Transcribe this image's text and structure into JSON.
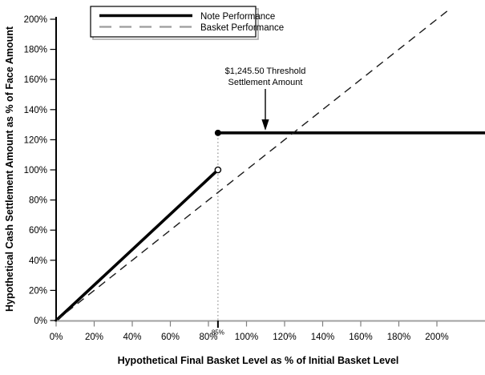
{
  "chart_data": {
    "type": "line",
    "title": "",
    "xlabel": "Hypothetical Final Basket Level as % of Initial Basket Level",
    "ylabel": "Hypothetical Cash Settlement Amount as % of Face Amount",
    "x_axis": {
      "tick_labels": [
        "0%",
        "20%",
        "40%",
        "60%",
        "80%",
        "100%",
        "120%",
        "140%",
        "160%",
        "180%",
        "200%"
      ],
      "tick_values": [
        0,
        20,
        40,
        60,
        80,
        100,
        120,
        140,
        160,
        180,
        200
      ],
      "special_tick": {
        "label": "85%",
        "value": 85
      },
      "range": [
        0,
        225
      ],
      "grid": false
    },
    "y_axis": {
      "tick_labels": [
        "0%",
        "20%",
        "40%",
        "60%",
        "80%",
        "100%",
        "120%",
        "140%",
        "160%",
        "180%",
        "200%"
      ],
      "tick_values": [
        0,
        20,
        40,
        60,
        80,
        100,
        120,
        140,
        160,
        180,
        200
      ],
      "range": [
        0,
        207
      ],
      "grid": false
    },
    "series": [
      {
        "name": "Note Performance",
        "style": "solid",
        "color": "#000000",
        "segments": [
          {
            "points": [
              [
                0,
                0
              ],
              [
                85,
                100
              ]
            ],
            "end_marker": "open-circle"
          },
          {
            "points": [
              [
                85,
                124.55
              ],
              [
                225,
                124.55
              ]
            ],
            "start_marker": "filled-circle"
          }
        ]
      },
      {
        "name": "Basket Performance",
        "style": "dashed",
        "color": "#1a1a1a",
        "legend_swatch_color": "#9c9c9c",
        "segments": [
          {
            "points": [
              [
                0,
                0
              ],
              [
                207,
                207
              ]
            ]
          }
        ]
      }
    ],
    "guide_line": {
      "x_value": 85,
      "top_y_value": 124.55,
      "style": "dotted",
      "color": "#909090"
    },
    "annotation": {
      "line1": "$1,245.50 Threshold",
      "line2": "Settlement Amount",
      "arrow_points_to_y": 124.55
    },
    "legend": {
      "position": "top",
      "entries": [
        "Note Performance",
        "Basket Performance"
      ]
    },
    "colors": {
      "x_axis": "#a0a0a0",
      "x_ticks": "#7f7f7f",
      "y_axis": "#000000",
      "note_line": "#000000",
      "basket_line": "#1a1a1a",
      "legend_dash": "#9c9c9c",
      "guide": "#909090",
      "background": "#ffffff"
    }
  }
}
